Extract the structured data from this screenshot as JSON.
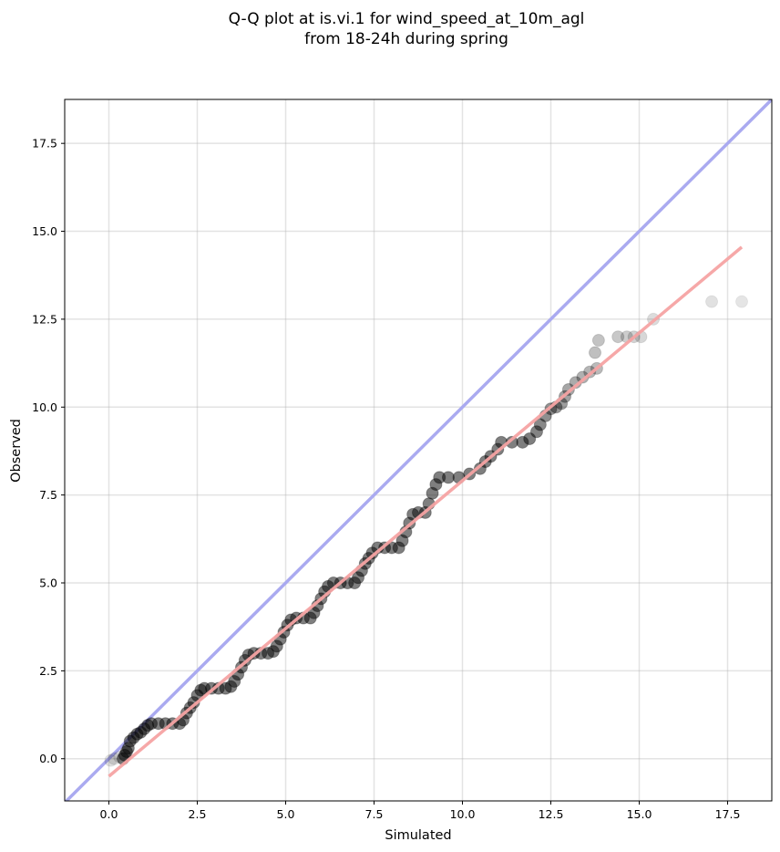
{
  "chart_data": {
    "type": "scatter",
    "title_lines": [
      "Q-Q plot at is.vi.1 for wind_speed_at_10m_agl",
      "from 18-24h during spring"
    ],
    "xlabel": "Simulated",
    "ylabel": "Observed",
    "xlim": [
      -1.25,
      18.75
    ],
    "ylim": [
      -1.2,
      18.75
    ],
    "xticks": [
      "0.0",
      "2.5",
      "5.0",
      "7.5",
      "10.0",
      "12.5",
      "15.0",
      "17.5"
    ],
    "yticks": [
      "0.0",
      "2.5",
      "5.0",
      "7.5",
      "10.0",
      "12.5",
      "15.0",
      "17.5"
    ],
    "grid": true,
    "identity_line": {
      "color": "#aaaaf0"
    },
    "fit_line": {
      "x": [
        0.0,
        17.9
      ],
      "y": [
        -0.5,
        14.55
      ],
      "color": "#f5a3a3"
    },
    "point_color": "#000000",
    "points": [
      [
        0.05,
        -0.05
      ],
      [
        0.15,
        0.0
      ],
      [
        0.3,
        0.05
      ],
      [
        0.4,
        0.0
      ],
      [
        0.45,
        0.1
      ],
      [
        0.5,
        0.2
      ],
      [
        0.55,
        0.3
      ],
      [
        0.6,
        0.5
      ],
      [
        0.7,
        0.6
      ],
      [
        0.8,
        0.7
      ],
      [
        0.9,
        0.75
      ],
      [
        1.0,
        0.85
      ],
      [
        1.1,
        0.95
      ],
      [
        1.2,
        1.0
      ],
      [
        1.4,
        1.0
      ],
      [
        1.6,
        1.0
      ],
      [
        1.8,
        1.0
      ],
      [
        2.0,
        1.0
      ],
      [
        2.1,
        1.1
      ],
      [
        2.2,
        1.3
      ],
      [
        2.3,
        1.45
      ],
      [
        2.4,
        1.6
      ],
      [
        2.5,
        1.8
      ],
      [
        2.6,
        1.95
      ],
      [
        2.7,
        2.0
      ],
      [
        2.9,
        2.0
      ],
      [
        3.1,
        2.0
      ],
      [
        3.3,
        2.0
      ],
      [
        3.45,
        2.05
      ],
      [
        3.55,
        2.2
      ],
      [
        3.65,
        2.4
      ],
      [
        3.75,
        2.6
      ],
      [
        3.85,
        2.8
      ],
      [
        3.95,
        2.95
      ],
      [
        4.1,
        3.0
      ],
      [
        4.3,
        3.0
      ],
      [
        4.5,
        3.0
      ],
      [
        4.65,
        3.05
      ],
      [
        4.75,
        3.2
      ],
      [
        4.85,
        3.4
      ],
      [
        4.95,
        3.6
      ],
      [
        5.05,
        3.8
      ],
      [
        5.15,
        3.95
      ],
      [
        5.3,
        4.0
      ],
      [
        5.5,
        4.0
      ],
      [
        5.7,
        4.0
      ],
      [
        5.8,
        4.15
      ],
      [
        5.9,
        4.35
      ],
      [
        6.0,
        4.55
      ],
      [
        6.1,
        4.75
      ],
      [
        6.2,
        4.9
      ],
      [
        6.35,
        5.0
      ],
      [
        6.55,
        5.0
      ],
      [
        6.75,
        5.0
      ],
      [
        6.95,
        5.0
      ],
      [
        7.05,
        5.15
      ],
      [
        7.15,
        5.35
      ],
      [
        7.25,
        5.55
      ],
      [
        7.35,
        5.7
      ],
      [
        7.45,
        5.85
      ],
      [
        7.6,
        6.0
      ],
      [
        7.8,
        6.0
      ],
      [
        8.0,
        6.0
      ],
      [
        8.2,
        6.0
      ],
      [
        8.3,
        6.2
      ],
      [
        8.4,
        6.45
      ],
      [
        8.5,
        6.7
      ],
      [
        8.6,
        6.95
      ],
      [
        8.75,
        7.0
      ],
      [
        8.95,
        7.0
      ],
      [
        9.05,
        7.25
      ],
      [
        9.15,
        7.55
      ],
      [
        9.25,
        7.8
      ],
      [
        9.35,
        8.0
      ],
      [
        9.6,
        8.0
      ],
      [
        9.9,
        8.0
      ],
      [
        10.2,
        8.1
      ],
      [
        10.5,
        8.25
      ],
      [
        10.65,
        8.45
      ],
      [
        10.8,
        8.6
      ],
      [
        11.0,
        8.8
      ],
      [
        11.1,
        9.0
      ],
      [
        11.4,
        9.0
      ],
      [
        11.7,
        9.0
      ],
      [
        11.9,
        9.1
      ],
      [
        12.1,
        9.3
      ],
      [
        12.2,
        9.5
      ],
      [
        12.35,
        9.75
      ],
      [
        12.5,
        9.95
      ],
      [
        12.65,
        10.0
      ],
      [
        12.8,
        10.1
      ],
      [
        12.9,
        10.3
      ],
      [
        13.0,
        10.5
      ],
      [
        13.2,
        10.7
      ],
      [
        13.4,
        10.85
      ],
      [
        13.6,
        11.0
      ],
      [
        13.8,
        11.1
      ],
      [
        13.75,
        11.55
      ],
      [
        13.85,
        11.9
      ],
      [
        14.4,
        12.0
      ],
      [
        14.65,
        12.0
      ],
      [
        14.85,
        12.0
      ],
      [
        15.05,
        12.0
      ],
      [
        15.4,
        12.5
      ],
      [
        17.05,
        13.0
      ],
      [
        17.9,
        13.0
      ]
    ]
  }
}
